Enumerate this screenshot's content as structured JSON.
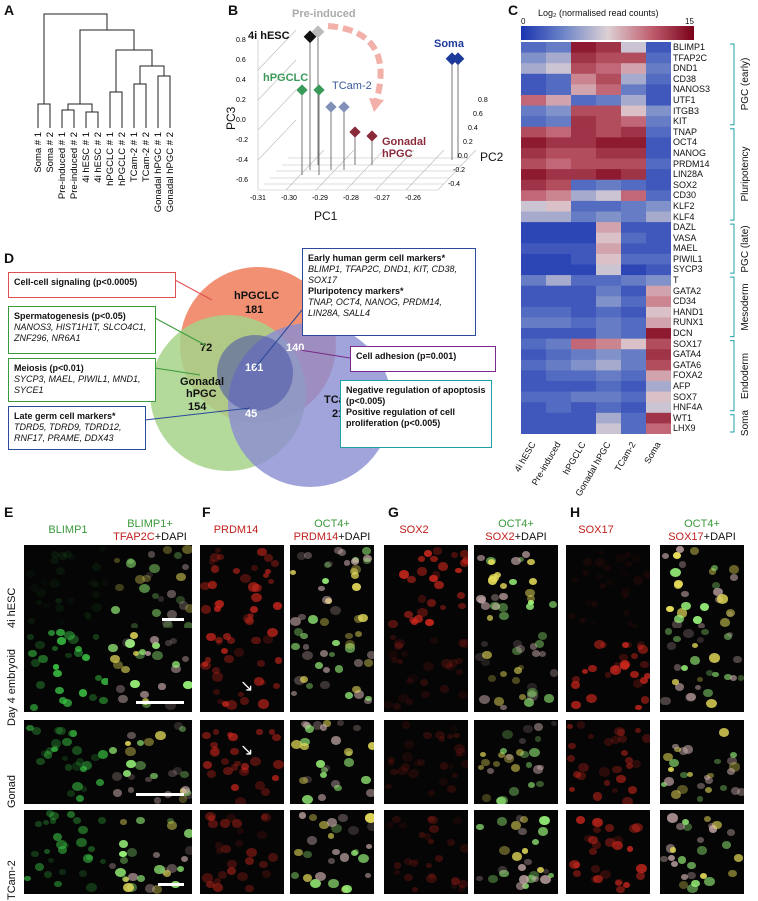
{
  "panels": {
    "A": "A",
    "B": "B",
    "C": "C",
    "D": "D",
    "E": "E",
    "F": "F",
    "G": "G",
    "H": "H"
  },
  "dendrogram": {
    "leaves": [
      "Soma # 1",
      "Soma # 2",
      "Pre-induced # 1",
      "Pre-induced # 2",
      "4i hESC # 1",
      "4i hESC # 2",
      "hPGCLC # 1",
      "hPGCLC # 2",
      "TCam-2 # 1",
      "TCam-2 # 2",
      "Gonadal hPGC # 1",
      "Gonadal hPGC # 2"
    ]
  },
  "pca": {
    "title_pre": "Pre-induced",
    "lbl_4i": "4i hESC",
    "lbl_soma": "Soma",
    "lbl_hpgclc": "hPGCLC",
    "lbl_tcam": "TCam-2",
    "lbl_gonadal1": "Gonadal",
    "lbl_gonadal2": "hPGC",
    "pc1": "PC1",
    "pc2": "PC2",
    "pc3": "PC3",
    "pc1_ticks": [
      "-0.31",
      "-0.30",
      "-0.29",
      "-0.28",
      "-0.27",
      "-0.26"
    ],
    "pc2_ticks": [
      "0.8",
      "0.6",
      "0.4",
      "0.2",
      "0.0",
      "-0.2",
      "-0.4"
    ],
    "pc3_ticks": [
      "0.8",
      "0.6",
      "0.4",
      "0.2",
      "0.0",
      "-0.2",
      "-0.4",
      "-0.6"
    ]
  },
  "heatmap": {
    "scale_label": "Log₂ (normalised read counts)",
    "scale_min": "0",
    "scale_max": "15",
    "columns": [
      "4i hESC",
      "Pre-induced",
      "hPGCLC",
      "Gonadal hPGC",
      "TCam-2",
      "Soma"
    ],
    "genes": [
      "BLIMP1",
      "TFAP2C",
      "DND1",
      "CD38",
      "NANOS3",
      "UTF1",
      "ITGB3",
      "KIT",
      "TNAP",
      "OCT4",
      "NANOG",
      "PRDM14",
      "LIN28A",
      "SOX2",
      "CD30",
      "KLF2",
      "KLF4",
      "DAZL",
      "VASA",
      "MAEL",
      "PIWIL1",
      "SYCP3",
      "T",
      "GATA2",
      "CD34",
      "HAND1",
      "RUNX1",
      "DCN",
      "SOX17",
      "GATA4",
      "GATA6",
      "FOXA2",
      "AFP",
      "SOX7",
      "HNF4A",
      "WT1",
      "LHX9"
    ],
    "groups": [
      "PGC (early)",
      "Pluripotency",
      "PGC (late)",
      "Mesoderm",
      "Endoderm",
      "Soma"
    ],
    "values": [
      [
        3,
        4,
        14,
        13,
        7,
        2
      ],
      [
        5,
        6,
        13,
        12,
        12,
        3
      ],
      [
        6,
        7,
        12,
        11,
        9,
        4
      ],
      [
        2,
        3,
        10,
        12,
        6,
        3
      ],
      [
        2,
        3,
        9,
        11,
        4,
        2
      ],
      [
        11,
        9,
        3,
        4,
        6,
        2
      ],
      [
        4,
        5,
        12,
        12,
        8,
        5
      ],
      [
        3,
        4,
        13,
        12,
        11,
        4
      ],
      [
        12,
        11,
        13,
        12,
        13,
        3
      ],
      [
        14,
        13,
        13,
        14,
        14,
        2
      ],
      [
        13,
        12,
        12,
        13,
        13,
        2
      ],
      [
        12,
        11,
        12,
        12,
        12,
        3
      ],
      [
        14,
        13,
        13,
        14,
        13,
        2
      ],
      [
        13,
        12,
        3,
        4,
        3,
        2
      ],
      [
        11,
        10,
        6,
        7,
        11,
        3
      ],
      [
        7,
        8,
        3,
        3,
        4,
        5
      ],
      [
        6,
        6,
        4,
        5,
        4,
        6
      ],
      [
        1,
        1,
        1,
        9,
        2,
        2
      ],
      [
        1,
        1,
        1,
        8,
        3,
        2
      ],
      [
        2,
        2,
        2,
        9,
        2,
        2
      ],
      [
        1,
        1,
        2,
        8,
        3,
        3
      ],
      [
        1,
        1,
        1,
        7,
        1,
        2
      ],
      [
        4,
        6,
        3,
        3,
        4,
        5
      ],
      [
        2,
        2,
        2,
        4,
        2,
        9
      ],
      [
        2,
        2,
        2,
        5,
        3,
        10
      ],
      [
        3,
        3,
        2,
        3,
        2,
        8
      ],
      [
        4,
        4,
        3,
        4,
        3,
        9
      ],
      [
        2,
        2,
        2,
        4,
        3,
        14
      ],
      [
        3,
        4,
        11,
        10,
        8,
        12
      ],
      [
        2,
        3,
        4,
        5,
        4,
        13
      ],
      [
        3,
        4,
        5,
        6,
        4,
        12
      ],
      [
        2,
        3,
        3,
        4,
        3,
        9
      ],
      [
        2,
        2,
        2,
        3,
        2,
        6
      ],
      [
        3,
        3,
        4,
        4,
        3,
        8
      ],
      [
        2,
        3,
        2,
        3,
        2,
        7
      ],
      [
        2,
        2,
        2,
        6,
        3,
        13
      ],
      [
        2,
        2,
        2,
        7,
        3,
        11
      ]
    ]
  },
  "venn": {
    "hpgclc": "hPGCLC",
    "hpgclc_n": "181",
    "gonadal1": "Gonadal",
    "gonadal2": "hPGC",
    "gonadal_n": "154",
    "tcam": "TCam-2",
    "tcam_n": "219",
    "n72": "72",
    "n161": "161",
    "n140": "140",
    "n45": "45"
  },
  "boxes": {
    "cell_signaling": "Cell-cell signaling (p<0.0005)",
    "sperm_title": "Spermatogenesis (p<0.05)",
    "sperm_genes": "NANOS3, HIST1H1T, SLCO4C1, ZNF296, NR6A1",
    "meiosis_title": "Meiosis (p<0.01)",
    "meiosis_genes": "SYCP3, MAEL, PIWIL1, MND1, SYCE1",
    "late_title": "Late germ cell markers*",
    "late_genes": "TDRD5, TDRD9, TDRD12, RNF17, PRAME, DDX43",
    "early_title": "Early human germ cell markers*",
    "early_genes": "BLIMP1, TFAP2C, DND1, KIT, CD38, SOX17",
    "pluri_title": "Pluripotency markers*",
    "pluri_genes": "TNAP, OCT4,  NANOG, PRDM14, LIN28A, SALL4",
    "adhesion": "Cell adhesion (p=0.001)",
    "apop": "Negative regulation of apoptosis (p<0.005)",
    "prolif": "Positive regulation of cell proliferation (p<0.005)"
  },
  "micro": {
    "rows": [
      "4i hESC",
      "Day 4 embryoid",
      "Gonad",
      "TCam-2"
    ],
    "E1": "BLIMP1",
    "E2a": "BLIMP1+",
    "E2b": "TFAP2C",
    "E2c": "+DAPI",
    "F1": "PRDM14",
    "F2a": "OCT4+",
    "F2b": "PRDM14",
    "F2c": "+DAPI",
    "G1": "SOX2",
    "G2a": "OCT4+",
    "G2b": "SOX2",
    "G2c": "+DAPI",
    "H1": "SOX17",
    "H2a": "OCT4+",
    "H2b": "SOX17",
    "H2c": "+DAPI"
  },
  "colors": {
    "green": "#3a9a3a",
    "red": "#c0201c",
    "hpgclc": "#f08a6a",
    "gonadal": "#a6d48a",
    "tcam": "#8a8cd2"
  }
}
